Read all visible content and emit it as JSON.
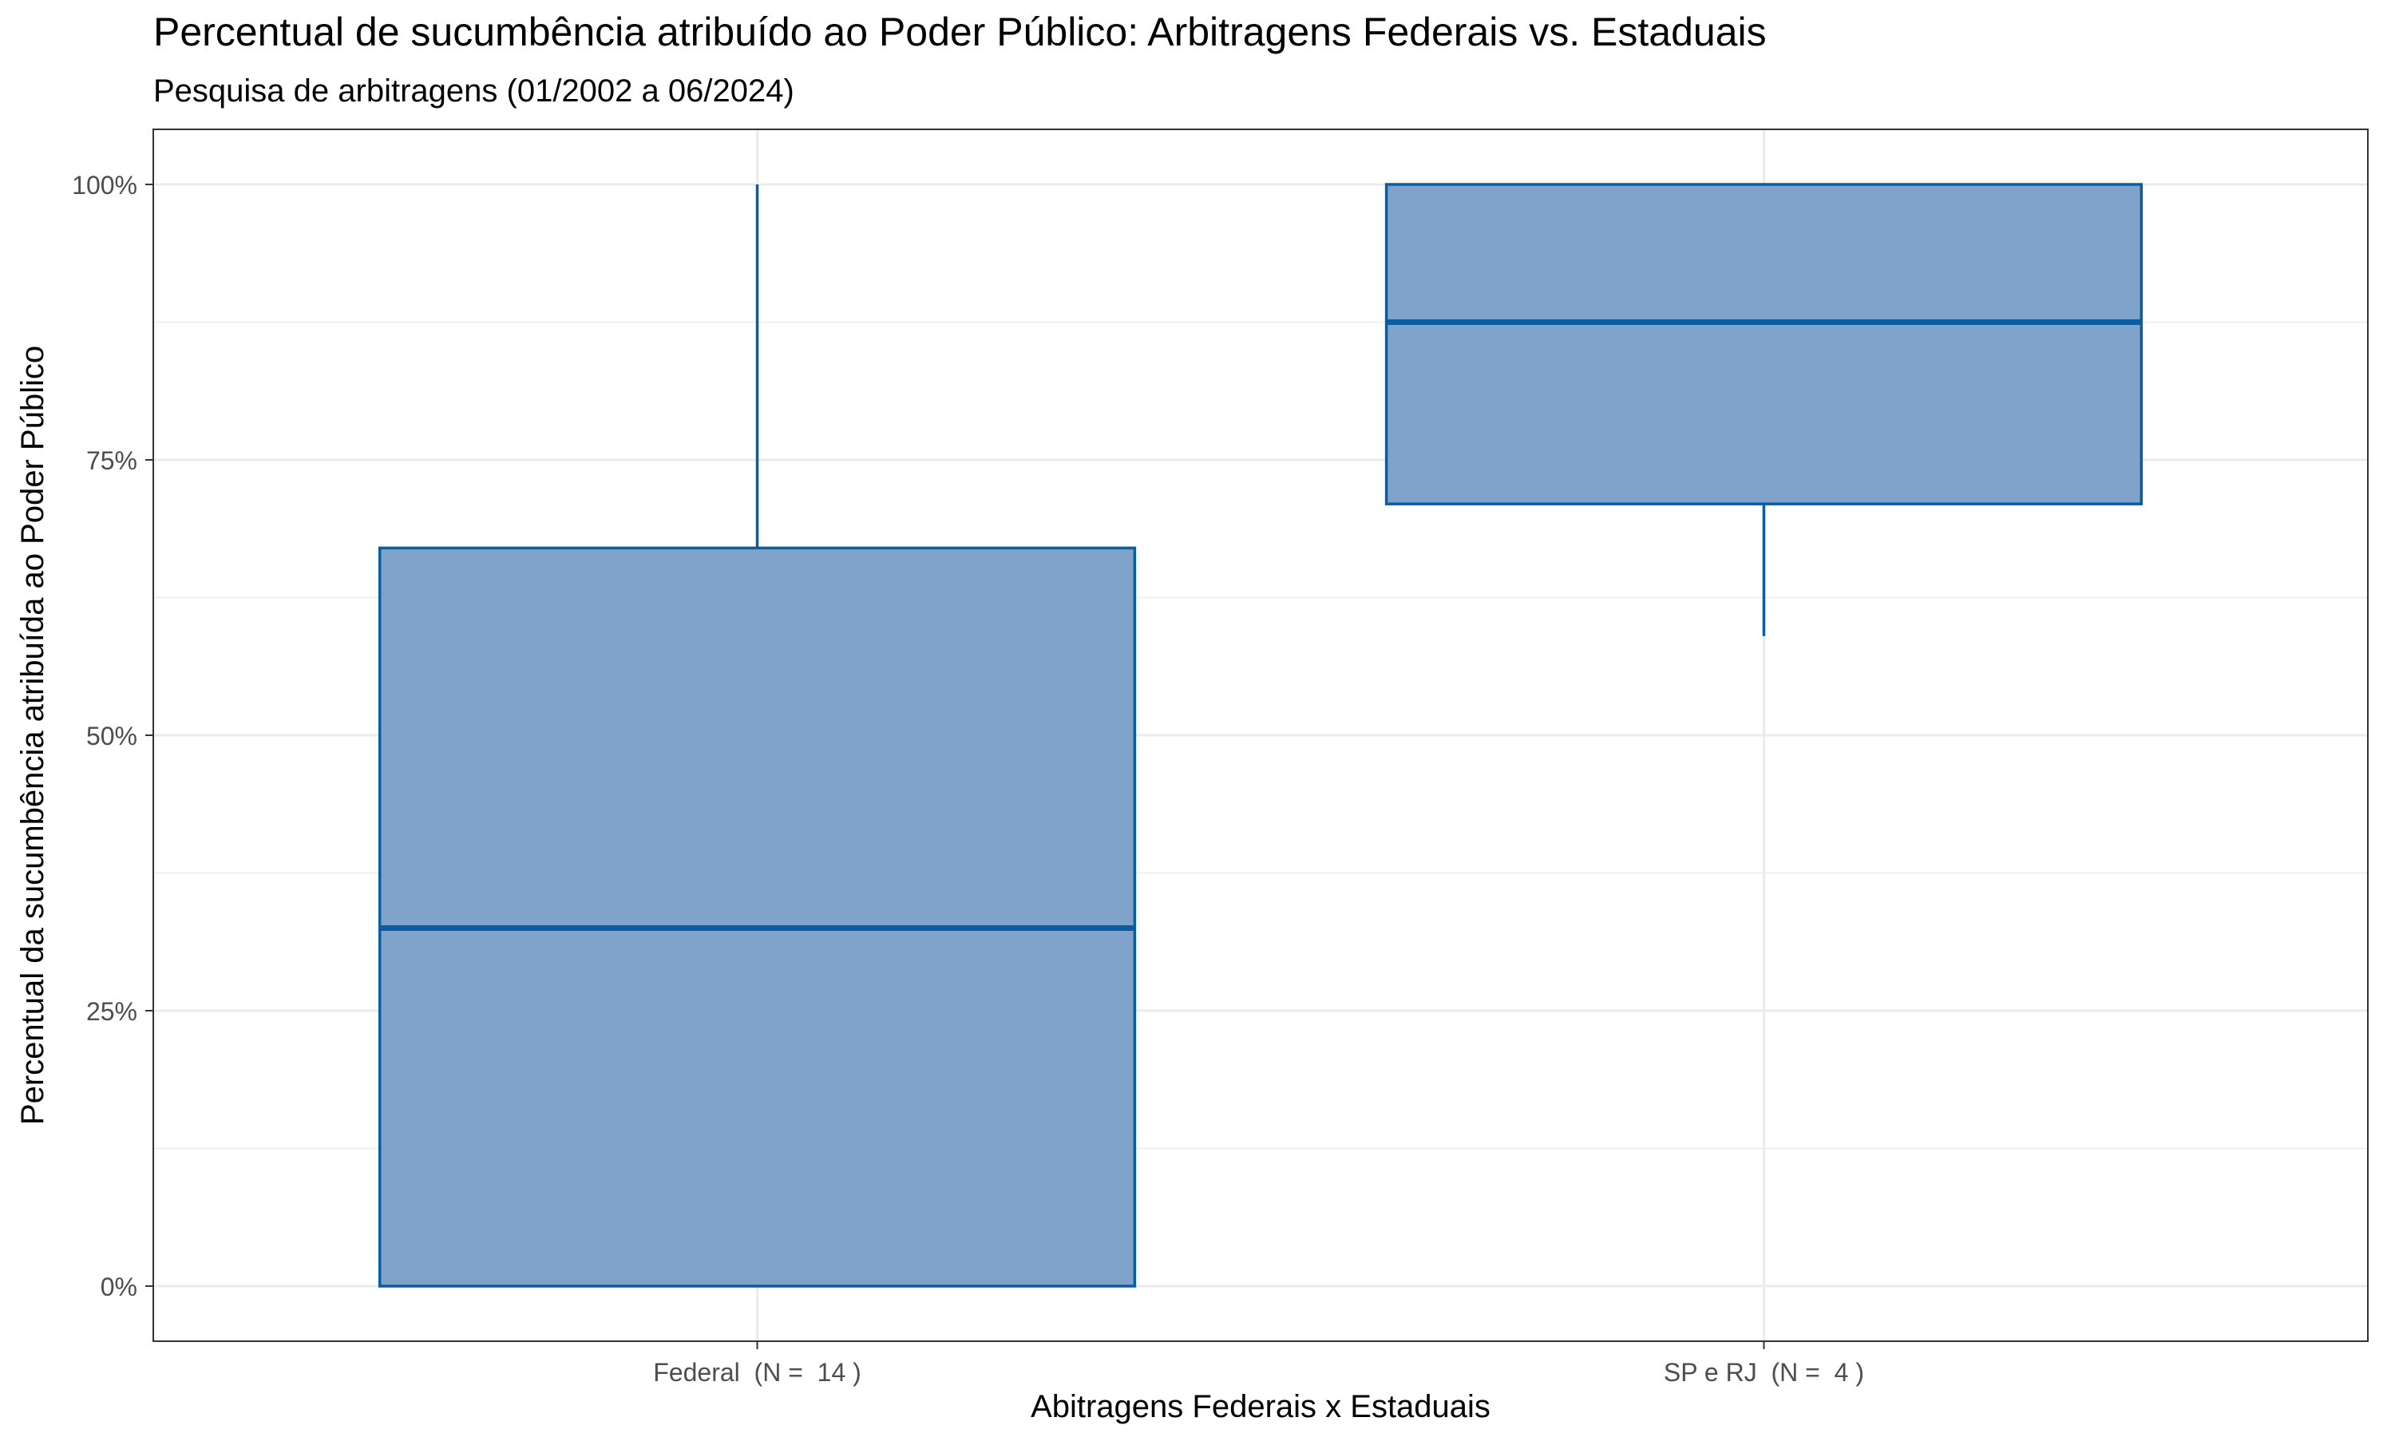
{
  "chart_data": {
    "type": "boxplot",
    "title": "Percentual de sucumbência atribuído ao Poder Público: Arbitragens Federais vs. Estaduais",
    "subtitle": "Pesquisa de arbitragens (01/2002 a 06/2024)",
    "xlabel": "Abitragens Federais x Estaduais",
    "ylabel": "Percentual da sucumbência atribuída ao Poder Público",
    "ylim": [
      -0.05,
      1.05
    ],
    "y_ticks": [
      0,
      0.25,
      0.5,
      0.75,
      1.0
    ],
    "y_tick_labels": [
      "0%",
      "25%",
      "50%",
      "75%",
      "100%"
    ],
    "categories": [
      "Federal  (N =  14 )",
      "SP e RJ  (N =  4 )"
    ],
    "boxes": [
      {
        "category": "Federal  (N =  14 )",
        "whisker_low": 0.0,
        "q1": 0.0,
        "median": 0.325,
        "q3": 0.67,
        "whisker_high": 1.0
      },
      {
        "category": "SP e RJ  (N =  4 )",
        "whisker_low": 0.59,
        "q1": 0.71,
        "median": 0.875,
        "q3": 1.0,
        "whisker_high": 1.0
      }
    ],
    "grid": true,
    "legend": "none",
    "colors": {
      "box_fill": "#80A3CB",
      "box_stroke": "#0B5CA0",
      "median": "#0B5CA0",
      "grid": "#EBEBEB",
      "panel_border": "#333333"
    }
  }
}
